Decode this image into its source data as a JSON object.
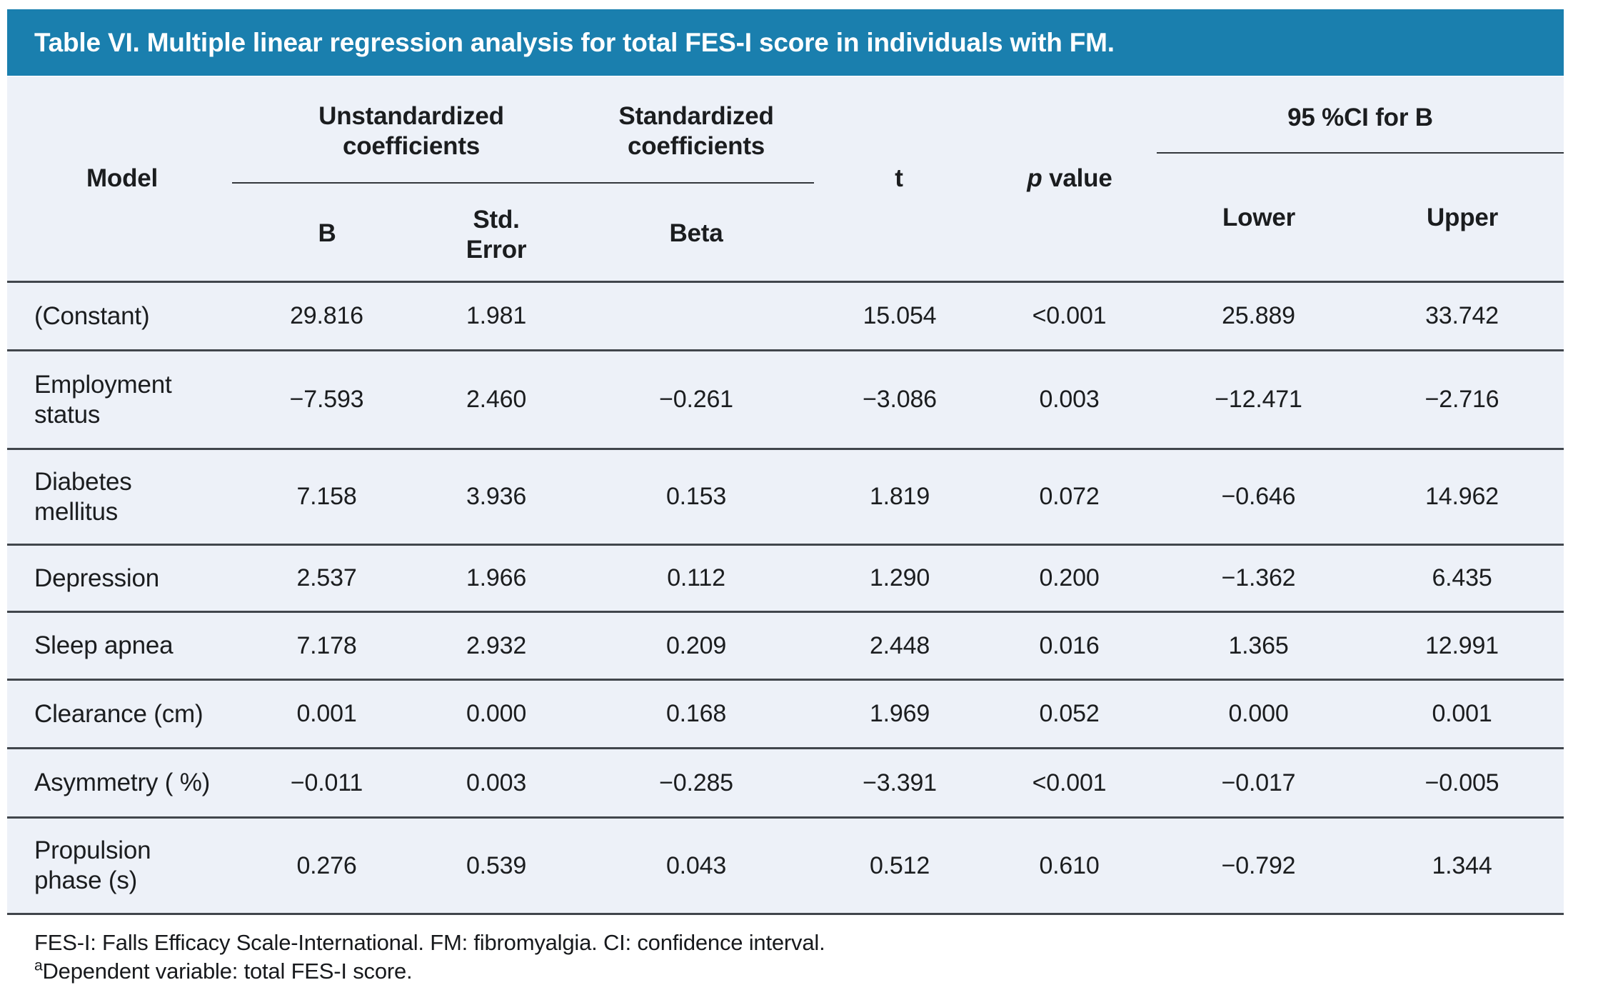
{
  "table": {
    "title": "Table VI. Multiple linear regression analysis for total FES-I score in individuals with FM.",
    "header": {
      "model": "Model",
      "unstandardized": "Unstandardized coefficients",
      "standardized": "Standardized coefficients",
      "b": "B",
      "std_error": "Std.\nError",
      "beta": "Beta",
      "t": "t",
      "p_italic": "p",
      "p_rest": " value",
      "ci": "95 %CI for B",
      "lower": "Lower",
      "upper": "Upper"
    },
    "rows": [
      {
        "model": "(Constant)",
        "b": "29.816",
        "se": "1.981",
        "beta": "",
        "t": "15.054",
        "p": "<0.001",
        "lower": "25.889",
        "upper": "33.742"
      },
      {
        "model": "Employment\nstatus",
        "b": "−7.593",
        "se": "2.460",
        "beta": "−0.261",
        "t": "−3.086",
        "p": "0.003",
        "lower": "−12.471",
        "upper": "−2.716"
      },
      {
        "model": "Diabetes\nmellitus",
        "b": "7.158",
        "se": "3.936",
        "beta": "0.153",
        "t": "1.819",
        "p": "0.072",
        "lower": "−0.646",
        "upper": "14.962"
      },
      {
        "model": "Depression",
        "b": "2.537",
        "se": "1.966",
        "beta": "0.112",
        "t": "1.290",
        "p": "0.200",
        "lower": "−1.362",
        "upper": "6.435"
      },
      {
        "model": "Sleep apnea",
        "b": "7.178",
        "se": "2.932",
        "beta": "0.209",
        "t": "2.448",
        "p": "0.016",
        "lower": "1.365",
        "upper": "12.991"
      },
      {
        "model": "Clearance (cm)",
        "b": "0.001",
        "se": "0.000",
        "beta": "0.168",
        "t": "1.969",
        "p": "0.052",
        "lower": "0.000",
        "upper": "0.001"
      },
      {
        "model": "Asymmetry ( %)",
        "b": "−0.011",
        "se": "0.003",
        "beta": "−0.285",
        "t": "−3.391",
        "p": "<0.001",
        "lower": "−0.017",
        "upper": "−0.005"
      },
      {
        "model": "Propulsion\nphase (s)",
        "b": "0.276",
        "se": "0.539",
        "beta": "0.043",
        "t": "0.512",
        "p": "0.610",
        "lower": "−0.792",
        "upper": "1.344"
      }
    ],
    "footnotes": {
      "line1": "FES-I: Falls Efficacy Scale-International. FM: fibromyalgia. CI: confidence interval.",
      "sup": "a",
      "line2": "Dependent variable: total FES-I score."
    },
    "colors": {
      "band": "#1a7fae",
      "body_bg": "#edf1f8",
      "rule": "#41464c"
    }
  }
}
